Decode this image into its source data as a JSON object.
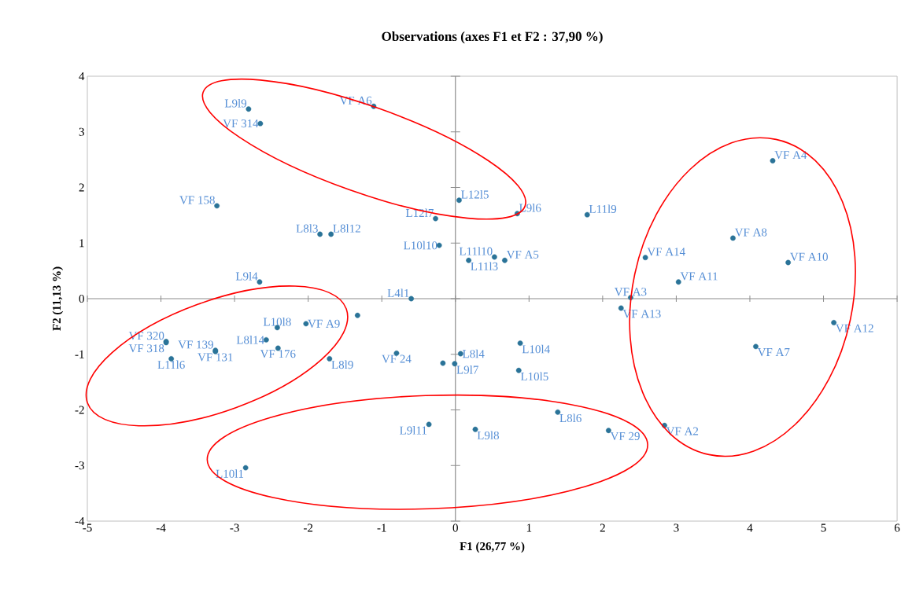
{
  "chart_data": {
    "type": "scatter",
    "title": "Observations (axes F1 et F2 : 37,90 %)",
    "xlabel": "F1 (26,77 %)",
    "ylabel": "F2 (11,13 %)",
    "xlim": [
      -5,
      6
    ],
    "ylim": [
      -4,
      4
    ],
    "xticks": [
      -5,
      -4,
      -3,
      -2,
      -1,
      0,
      1,
      2,
      3,
      4,
      5,
      6
    ],
    "yticks": [
      -4,
      -3,
      -2,
      -1,
      0,
      1,
      2,
      3,
      4
    ],
    "marker": "circle",
    "series": [
      {
        "color": "#2a7398",
        "x": [
          -2.81,
          -2.65,
          -1.11,
          -3.24,
          -1.84,
          -1.69,
          -0.27,
          -0.22,
          0.05,
          0.18,
          0.53,
          0.67,
          -0.6,
          -2.66,
          0.84,
          1.79,
          2.58,
          3.77,
          4.31,
          4.52,
          3.03,
          2.38,
          2.25,
          5.14,
          4.08,
          2.84,
          2.08,
          1.39,
          0.27,
          0.88,
          0.86,
          0.07,
          -0.17,
          -0.01,
          -0.8,
          -0.36,
          -2.85,
          -1.71,
          -1.33,
          -2.03,
          -2.42,
          -2.57,
          -2.41,
          -3.26,
          -3.26,
          -3.86,
          -3.93,
          -3.93
        ],
        "values": [
          3.41,
          3.15,
          3.46,
          1.67,
          1.16,
          1.16,
          1.44,
          0.96,
          1.77,
          0.69,
          0.75,
          0.69,
          0.0,
          0.3,
          1.53,
          1.51,
          0.74,
          1.09,
          2.48,
          0.65,
          0.3,
          0.02,
          -0.17,
          -0.43,
          -0.86,
          -2.28,
          -2.37,
          -2.04,
          -2.35,
          -0.8,
          -1.29,
          -0.99,
          -1.16,
          -1.17,
          -0.98,
          -2.26,
          -3.04,
          -1.08,
          -0.3,
          -0.45,
          -0.52,
          -0.74,
          -0.89,
          -0.93,
          -0.95,
          -1.08,
          -0.77,
          -0.79
        ],
        "value_labels": [
          "L9l9",
          "VF 314",
          "VF A6",
          "VF 158",
          "L8l3",
          "L8l12",
          "L12l7",
          "L10l10",
          "L12l5",
          "L11l3",
          "L11l10",
          "VF A5",
          "L4l1",
          "L9l4",
          "L9l6",
          "L11l9",
          "VF A14",
          "VF A8",
          "VF A4",
          "VF A10",
          "VF A11",
          "VF A3",
          "VF A13",
          "VF A12",
          "VF A7",
          "VF A2",
          "VF 29",
          "L8l6",
          "L9l8",
          "L10l4",
          "L10l5",
          "L8l4",
          null,
          "L9l7",
          "VF 24",
          "L9l11",
          "L10l1",
          "L8l9",
          null,
          "VF A9",
          "L10l8",
          "L8l14",
          "VF 176",
          "VF 139",
          "VF 131",
          "L11l6",
          "VF 320",
          "VF 318"
        ]
      }
    ]
  }
}
